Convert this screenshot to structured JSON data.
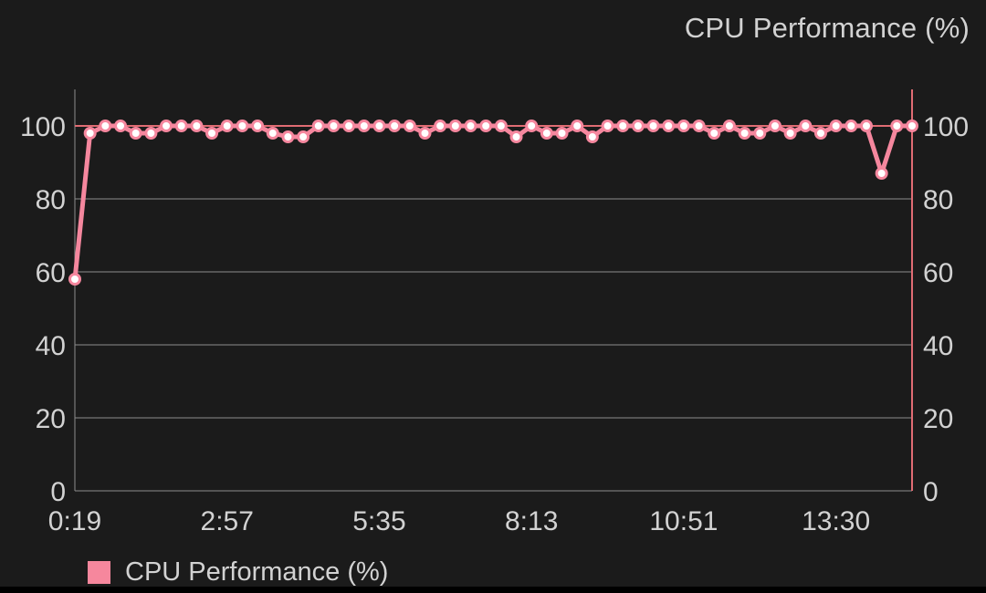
{
  "title": "CPU Performance (%)",
  "legend": {
    "label": "CPU Performance (%)",
    "swatch_color": "#f6879d"
  },
  "colors": {
    "background": "#1b1b1b",
    "bottom_bar": "#000000",
    "text": "#d2d2d2",
    "grid": "#8c8c8c",
    "series": "#f5879e",
    "point_fill": "#ffffff",
    "reference": "#e06c73"
  },
  "chart_data": {
    "type": "line",
    "title": "CPU Performance (%)",
    "xlabel": "",
    "ylabel": "",
    "ylim": [
      0,
      110
    ],
    "y_ticks": [
      0,
      20,
      40,
      60,
      80,
      100
    ],
    "x_tick_labels": [
      "0:19",
      "2:57",
      "5:35",
      "8:13",
      "10:51",
      "13:30"
    ],
    "x_tick_indices": [
      0,
      10,
      20,
      30,
      40,
      50
    ],
    "reference_line_y": 100,
    "grid": "horizontal",
    "legend_position": "bottom-left",
    "dual_y_axis": true,
    "series": [
      {
        "name": "CPU Performance (%)",
        "values": [
          58,
          98,
          100,
          100,
          98,
          98,
          100,
          100,
          100,
          98,
          100,
          100,
          100,
          98,
          97,
          97,
          100,
          100,
          100,
          100,
          100,
          100,
          100,
          98,
          100,
          100,
          100,
          100,
          100,
          97,
          100,
          98,
          98,
          100,
          97,
          100,
          100,
          100,
          100,
          100,
          100,
          100,
          98,
          100,
          98,
          98,
          100,
          98,
          100,
          98,
          100,
          100,
          100,
          87,
          100,
          100
        ]
      }
    ]
  }
}
